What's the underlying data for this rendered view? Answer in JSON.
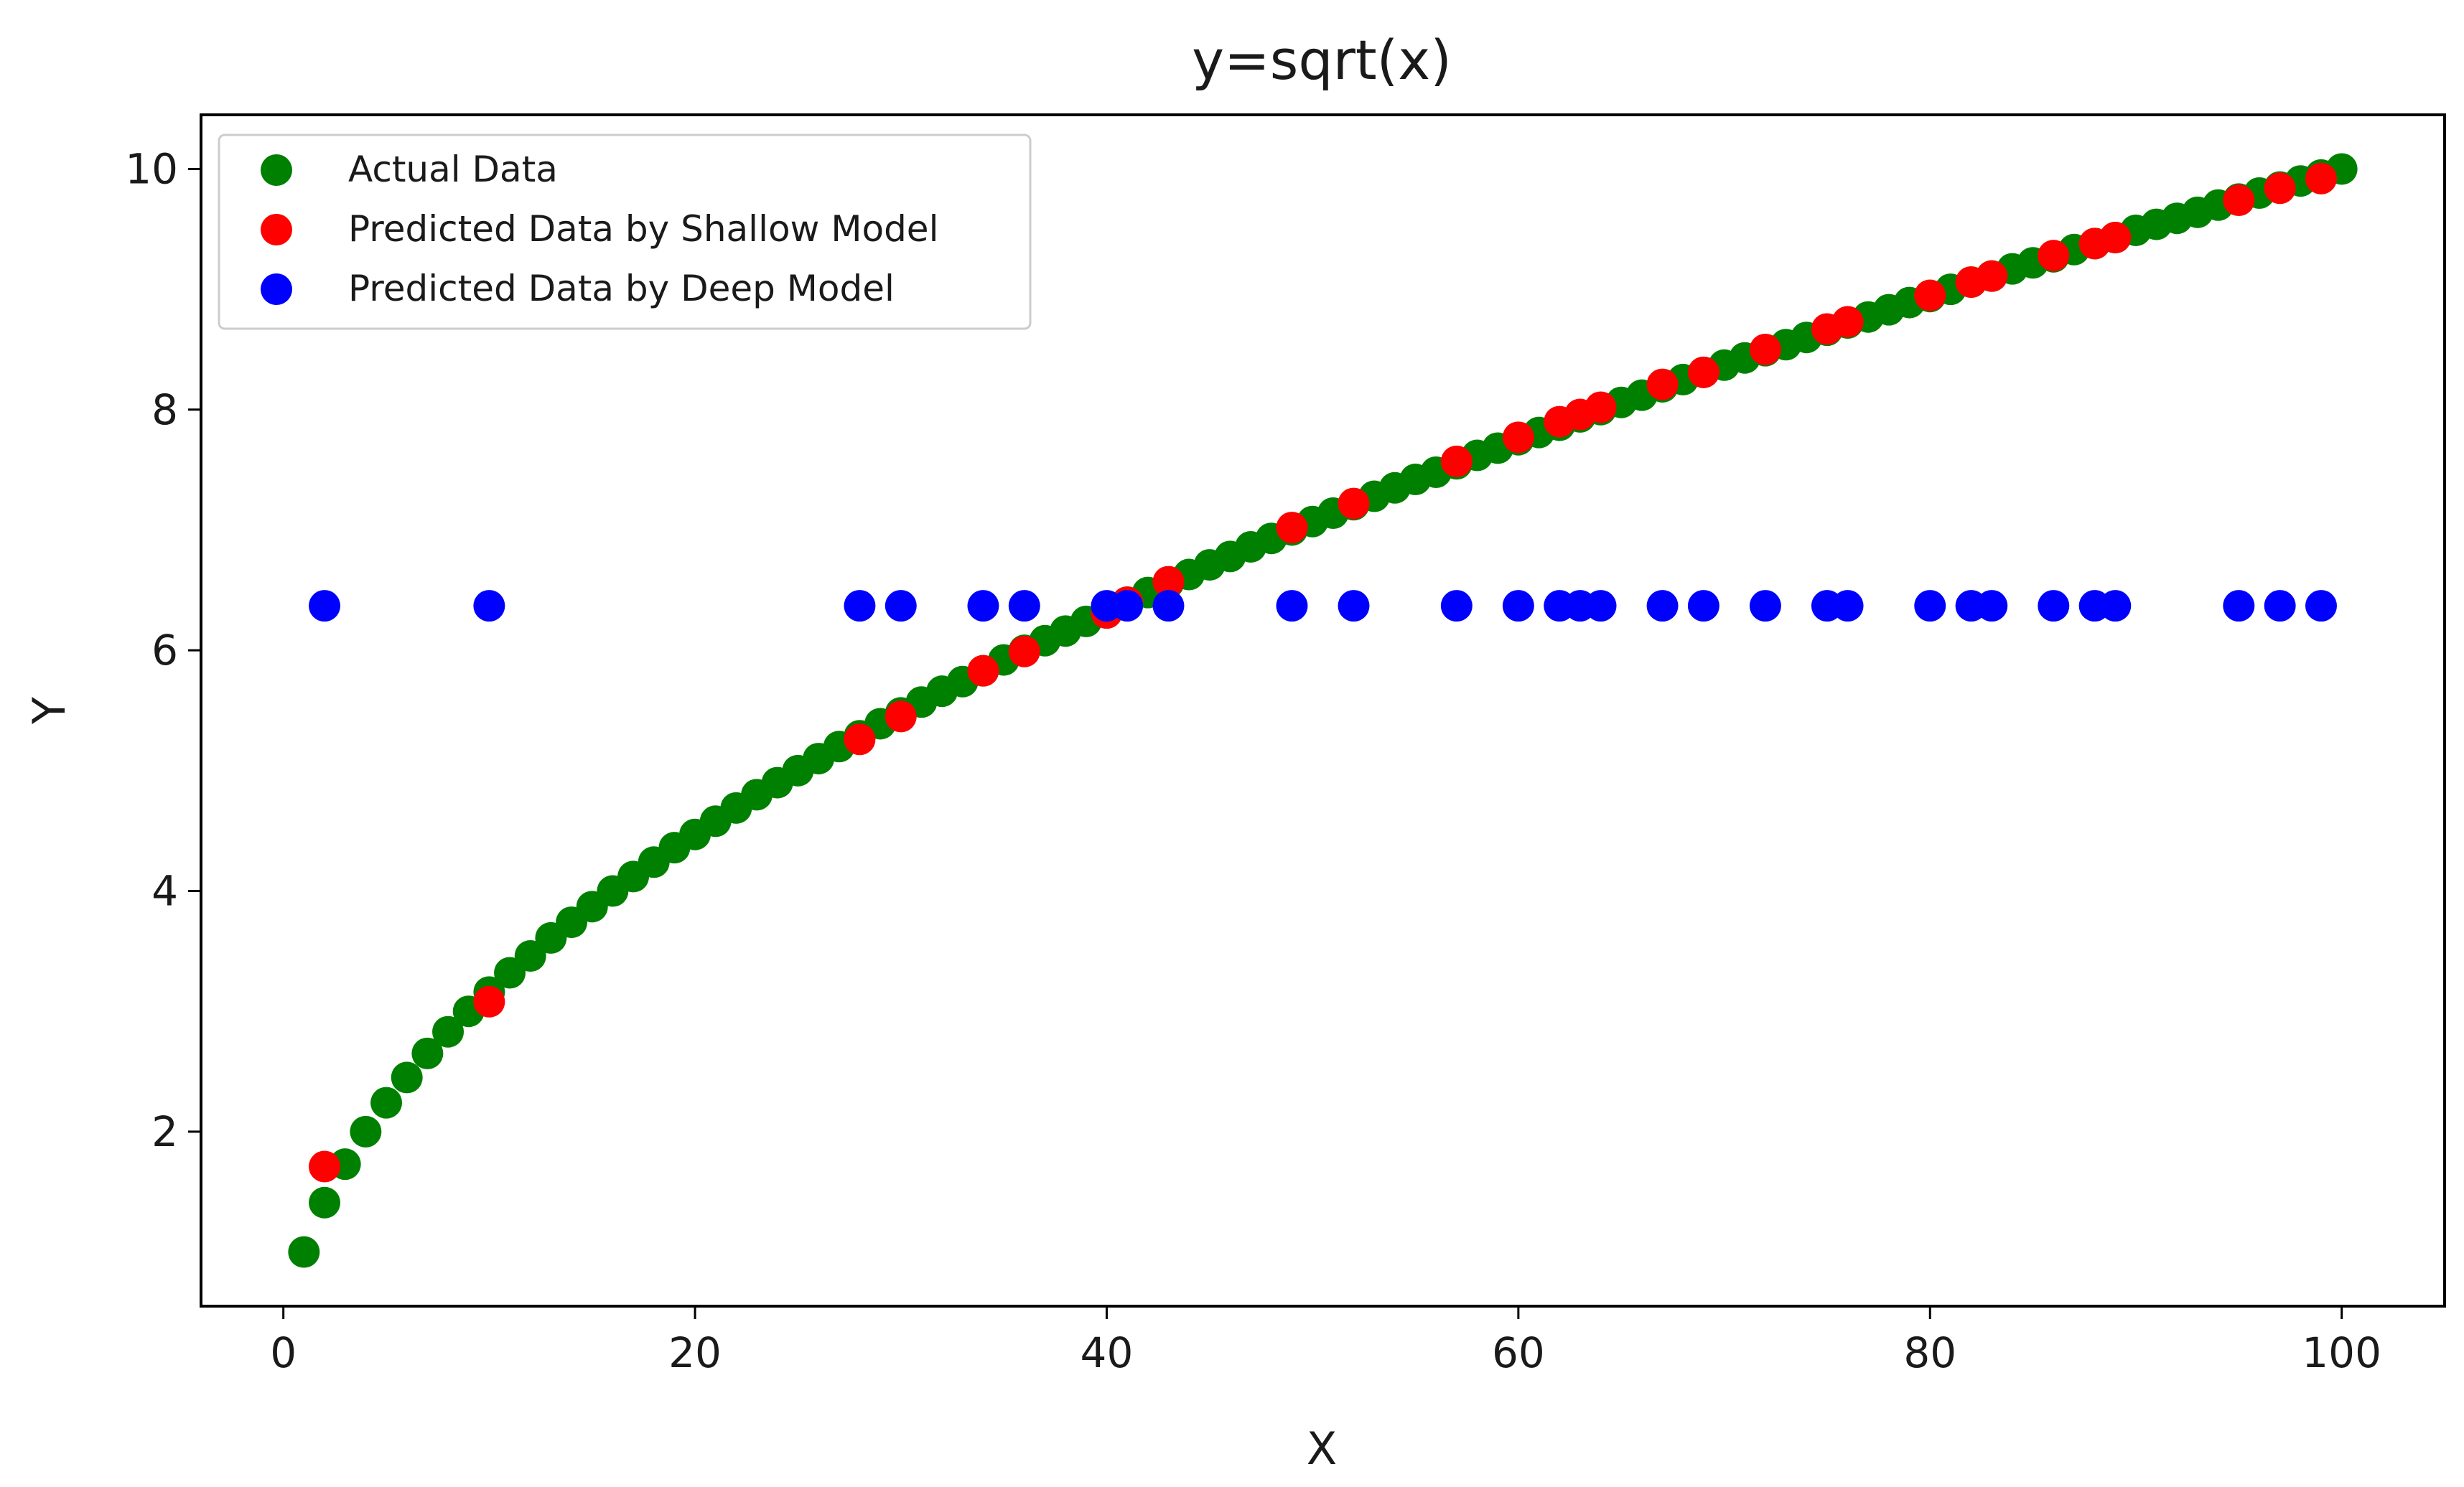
{
  "chart_data": {
    "type": "scatter",
    "title": "y=sqrt(x)",
    "xlabel": "X",
    "ylabel": "Y",
    "xlim": [
      -4,
      105
    ],
    "ylim": [
      0.55,
      10.45
    ],
    "xticks": [
      0,
      20,
      40,
      60,
      80,
      100
    ],
    "yticks": [
      2,
      4,
      6,
      8,
      10
    ],
    "grid": false,
    "legend_position": "top-left",
    "series": [
      {
        "name": "Actual Data",
        "color": "#008000",
        "x": [
          1,
          2,
          3,
          4,
          5,
          6,
          7,
          8,
          9,
          10,
          11,
          12,
          13,
          14,
          15,
          16,
          17,
          18,
          19,
          20,
          21,
          22,
          23,
          24,
          25,
          26,
          27,
          28,
          29,
          30,
          31,
          32,
          33,
          34,
          35,
          36,
          37,
          38,
          39,
          40,
          41,
          42,
          43,
          44,
          45,
          46,
          47,
          48,
          49,
          50,
          51,
          52,
          53,
          54,
          55,
          56,
          57,
          58,
          59,
          60,
          61,
          62,
          63,
          64,
          65,
          66,
          67,
          68,
          69,
          70,
          71,
          72,
          73,
          74,
          75,
          76,
          77,
          78,
          79,
          80,
          81,
          82,
          83,
          84,
          85,
          86,
          87,
          88,
          89,
          90,
          91,
          92,
          93,
          94,
          95,
          96,
          97,
          98,
          99,
          100
        ],
        "y": [
          1.0,
          1.41,
          1.73,
          2.0,
          2.24,
          2.45,
          2.65,
          2.83,
          3.0,
          3.16,
          3.32,
          3.46,
          3.61,
          3.74,
          3.87,
          4.0,
          4.12,
          4.24,
          4.36,
          4.47,
          4.58,
          4.69,
          4.8,
          4.9,
          5.0,
          5.1,
          5.2,
          5.29,
          5.39,
          5.48,
          5.57,
          5.66,
          5.74,
          5.83,
          5.92,
          6.0,
          6.08,
          6.16,
          6.24,
          6.32,
          6.4,
          6.48,
          6.56,
          6.63,
          6.71,
          6.78,
          6.86,
          6.93,
          7.0,
          7.07,
          7.14,
          7.21,
          7.28,
          7.35,
          7.42,
          7.48,
          7.55,
          7.62,
          7.68,
          7.75,
          7.81,
          7.87,
          7.94,
          8.0,
          8.06,
          8.12,
          8.19,
          8.25,
          8.31,
          8.37,
          8.43,
          8.49,
          8.54,
          8.6,
          8.66,
          8.72,
          8.77,
          8.83,
          8.89,
          8.94,
          9.0,
          9.06,
          9.11,
          9.17,
          9.22,
          9.27,
          9.33,
          9.38,
          9.43,
          9.49,
          9.54,
          9.59,
          9.64,
          9.7,
          9.75,
          9.8,
          9.85,
          9.9,
          9.95,
          10.0
        ]
      },
      {
        "name": "Predicted Data by Shallow Model",
        "color": "#ff0000",
        "x": [
          2,
          10,
          28,
          30,
          34,
          36,
          40,
          41,
          43,
          49,
          52,
          57,
          60,
          62,
          63,
          64,
          67,
          69,
          72,
          75,
          76,
          80,
          82,
          83,
          86,
          88,
          89,
          95,
          97,
          99
        ],
        "y": [
          1.71,
          3.08,
          5.26,
          5.45,
          5.83,
          5.99,
          6.31,
          6.4,
          6.57,
          7.02,
          7.22,
          7.57,
          7.77,
          7.9,
          7.96,
          8.02,
          8.21,
          8.31,
          8.5,
          8.67,
          8.73,
          8.95,
          9.06,
          9.11,
          9.28,
          9.38,
          9.43,
          9.74,
          9.84,
          9.92
        ]
      },
      {
        "name": "Predicted Data by Deep Model",
        "color": "#0000ff",
        "x": [
          2,
          10,
          28,
          30,
          34,
          36,
          40,
          41,
          43,
          49,
          52,
          57,
          60,
          62,
          63,
          64,
          67,
          69,
          72,
          75,
          76,
          80,
          82,
          83,
          86,
          88,
          89,
          95,
          97,
          99
        ],
        "y": [
          6.37,
          6.37,
          6.37,
          6.37,
          6.37,
          6.37,
          6.37,
          6.37,
          6.37,
          6.37,
          6.37,
          6.37,
          6.37,
          6.37,
          6.37,
          6.37,
          6.37,
          6.37,
          6.37,
          6.37,
          6.37,
          6.37,
          6.37,
          6.37,
          6.37,
          6.37,
          6.37,
          6.37,
          6.37,
          6.37
        ]
      }
    ]
  }
}
